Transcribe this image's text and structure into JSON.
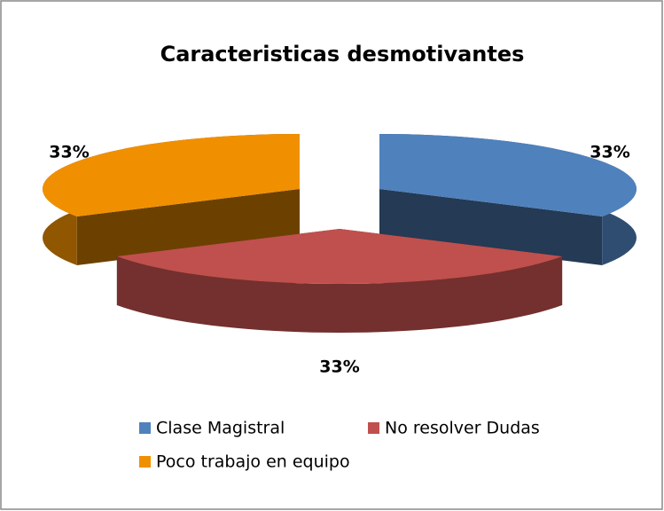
{
  "chart_data": {
    "type": "pie3d",
    "title": "Caracteristicas desmotivantes",
    "categories": [
      "Clase Magistral",
      "No resolver Dudas",
      "Poco trabajo en equipo"
    ],
    "values": [
      33,
      33,
      33
    ],
    "value_labels": [
      "33%",
      "33%",
      "33%"
    ],
    "colors": [
      "#4f81bd",
      "#c0504d",
      "#f09000"
    ]
  }
}
